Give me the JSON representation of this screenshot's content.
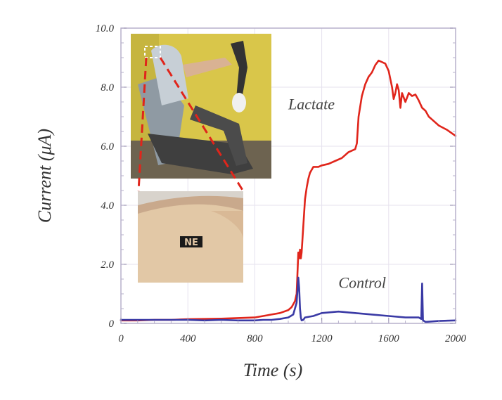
{
  "chart_data": {
    "type": "line",
    "xlabel": "Time (s)",
    "ylabel": "Current (μA)",
    "xlim": [
      0,
      2000
    ],
    "ylim": [
      0,
      10.0
    ],
    "x_ticks": [
      "0",
      "400",
      "800",
      "1200",
      "1600",
      "2000"
    ],
    "y_ticks": [
      "0",
      "2.0",
      "4.0",
      "6.0",
      "8.0",
      "10.0"
    ],
    "grid": true,
    "series": [
      {
        "name": "Lactate",
        "color": "#e0251b",
        "x": [
          0,
          100,
          200,
          300,
          400,
          500,
          600,
          700,
          800,
          850,
          900,
          950,
          1000,
          1020,
          1040,
          1050,
          1055,
          1060,
          1065,
          1070,
          1075,
          1080,
          1090,
          1100,
          1110,
          1120,
          1130,
          1140,
          1150,
          1160,
          1180,
          1200,
          1240,
          1280,
          1320,
          1360,
          1400,
          1410,
          1420,
          1440,
          1460,
          1480,
          1500,
          1520,
          1540,
          1560,
          1580,
          1600,
          1620,
          1630,
          1640,
          1650,
          1660,
          1670,
          1680,
          1700,
          1720,
          1740,
          1760,
          1780,
          1800,
          1820,
          1840,
          1860,
          1900,
          1950,
          2000
        ],
        "y": [
          0.1,
          0.1,
          0.12,
          0.12,
          0.14,
          0.15,
          0.16,
          0.18,
          0.2,
          0.25,
          0.3,
          0.35,
          0.45,
          0.55,
          0.75,
          1.0,
          1.7,
          2.4,
          2.2,
          2.5,
          2.2,
          2.4,
          3.3,
          4.2,
          4.6,
          4.9,
          5.1,
          5.2,
          5.3,
          5.3,
          5.3,
          5.35,
          5.4,
          5.5,
          5.6,
          5.8,
          5.9,
          6.1,
          7.0,
          7.7,
          8.1,
          8.35,
          8.5,
          8.75,
          8.9,
          8.85,
          8.8,
          8.55,
          8.0,
          7.6,
          7.8,
          8.1,
          7.9,
          7.3,
          7.8,
          7.5,
          7.8,
          7.7,
          7.75,
          7.55,
          7.3,
          7.2,
          7.0,
          6.9,
          6.7,
          6.55,
          6.35
        ]
      },
      {
        "name": "Control",
        "color": "#3a3aa5",
        "x": [
          0,
          100,
          200,
          300,
          400,
          500,
          600,
          700,
          800,
          850,
          900,
          950,
          1000,
          1030,
          1050,
          1060,
          1065,
          1070,
          1075,
          1080,
          1090,
          1100,
          1150,
          1200,
          1300,
          1400,
          1500,
          1600,
          1700,
          1780,
          1795,
          1800,
          1805,
          1820,
          1900,
          2000
        ],
        "y": [
          0.12,
          0.12,
          0.12,
          0.12,
          0.12,
          0.1,
          0.12,
          0.1,
          0.1,
          0.12,
          0.12,
          0.15,
          0.2,
          0.3,
          0.7,
          1.55,
          1.2,
          0.5,
          0.2,
          0.1,
          0.12,
          0.2,
          0.25,
          0.35,
          0.4,
          0.35,
          0.3,
          0.25,
          0.2,
          0.2,
          0.15,
          1.35,
          0.1,
          0.05,
          0.08,
          0.1
        ]
      }
    ],
    "annotations": [
      {
        "text": "Lactate",
        "x": 1000,
        "y": 7.25
      },
      {
        "text": "Control",
        "x": 1300,
        "y": 1.2
      }
    ]
  },
  "inset_images": [
    {
      "description_icon": "photo-exercise-bike"
    },
    {
      "description_icon": "photo-skin-sensor"
    }
  ],
  "sensor_label": "NE"
}
